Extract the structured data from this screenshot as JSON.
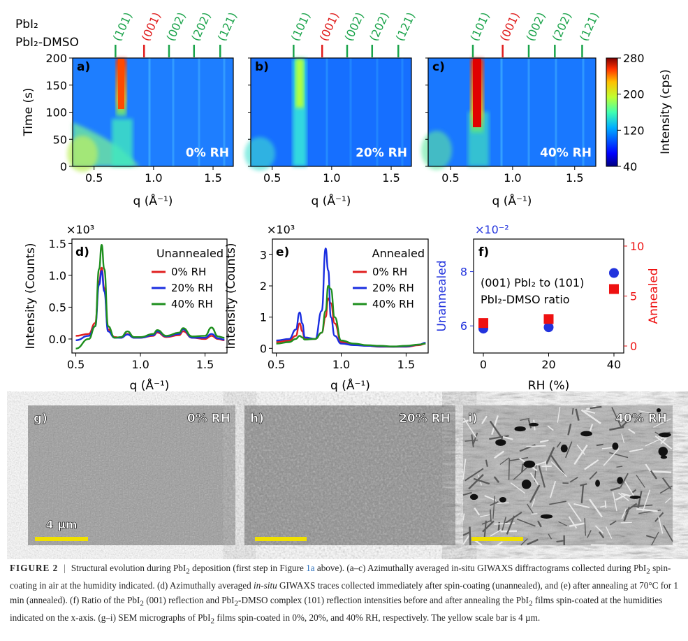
{
  "legend_top": {
    "pbi2": "PbI₂",
    "complex": "PbI₂-DMSO"
  },
  "peak_labels": [
    "(101)",
    "(001)",
    "(002)",
    "(202)",
    "(121)"
  ],
  "heatmap": {
    "panels": [
      {
        "letter": "a)",
        "rh": "0% RH"
      },
      {
        "letter": "b)",
        "rh": "20% RH"
      },
      {
        "letter": "c)",
        "rh": "40% RH"
      }
    ],
    "ylabel": "Time (s)",
    "xlabel": "q (Å⁻¹)",
    "yticks": [
      "0",
      "50",
      "100",
      "150",
      "200"
    ],
    "xticks": [
      "0.5",
      "1.0",
      "1.5"
    ],
    "colorbar": {
      "label": "Intensity (cps)",
      "ticks": [
        "40",
        "120",
        "200",
        "280"
      ]
    }
  },
  "panel_d": {
    "letter": "d)",
    "title": "Unannealed",
    "multiplier": "×10³",
    "ylabel": "Intensity (Counts)",
    "xlabel": "q (Å⁻¹)",
    "yticks": [
      "0.0",
      "0.5",
      "1.0",
      "1.5"
    ],
    "xticks": [
      "0.5",
      "1.0",
      "1.5"
    ],
    "legend": [
      "0% RH",
      "20% RH",
      "40% RH"
    ]
  },
  "panel_e": {
    "letter": "e)",
    "title": "Annealed",
    "multiplier": "×10³",
    "ylabel": "Intensity (Counts)",
    "xlabel": "q (Å⁻¹)",
    "yticks": [
      "0",
      "1",
      "2",
      "3"
    ],
    "xticks": [
      "0.5",
      "1.0",
      "1.5"
    ],
    "legend": [
      "0% RH",
      "20% RH",
      "40% RH"
    ]
  },
  "panel_f": {
    "letter": "f)",
    "multiplier": "×10⁻²",
    "ylabel_left": "Unannealed",
    "ylabel_right": "Annealed",
    "xlabel": "RH (%)",
    "text1": "(001) PbI₂ to (101)",
    "text2": "PbI₂-DMSO ratio",
    "yticks_left": [
      "6",
      "8"
    ],
    "yticks_right": [
      "0",
      "5",
      "10"
    ],
    "xticks": [
      "0",
      "20",
      "40"
    ]
  },
  "sem": [
    {
      "letter": "g)",
      "rh": "0% RH",
      "scale": "4 µm"
    },
    {
      "letter": "h)",
      "rh": "20% RH"
    },
    {
      "letter": "i)",
      "rh": "40% RH"
    }
  ],
  "colors": {
    "pbi2": "#e01b1b",
    "complex": "#1aa34a",
    "blue": "#1a2ee0",
    "green": "#1e8f1e",
    "red": "#e02020",
    "scale": "#f0e000",
    "ratio_blue": "#2233dd",
    "ratio_red": "#ee1111"
  },
  "chart_data": [
    {
      "type": "line",
      "title": "Unannealed",
      "xlabel": "q (Å⁻¹)",
      "ylabel": "Intensity (Counts)",
      "xlim": [
        0.47,
        1.67
      ],
      "ylim": [
        -0.22,
        1.57
      ],
      "y_multiplier": "×10³",
      "x": [
        0.5,
        0.6,
        0.65,
        0.68,
        0.7,
        0.72,
        0.75,
        0.8,
        0.85,
        0.9,
        0.95,
        1.0,
        1.1,
        1.13,
        1.2,
        1.3,
        1.33,
        1.4,
        1.5,
        1.55,
        1.6,
        1.65
      ],
      "series": [
        {
          "name": "0% RH",
          "values": [
            0.05,
            0.08,
            0.25,
            0.9,
            1.12,
            0.8,
            0.15,
            0.03,
            0.02,
            0.08,
            0.02,
            0.02,
            0.05,
            0.1,
            0.03,
            0.06,
            0.12,
            0.02,
            0.0,
            0.05,
            0.0,
            -0.02
          ]
        },
        {
          "name": "20% RH",
          "values": [
            -0.02,
            0.05,
            0.2,
            0.85,
            1.07,
            0.75,
            0.12,
            0.02,
            0.02,
            0.07,
            0.02,
            0.02,
            0.06,
            0.12,
            0.04,
            0.08,
            0.15,
            0.02,
            0.02,
            0.08,
            0.01,
            -0.01
          ]
        },
        {
          "name": "40% RH",
          "values": [
            -0.15,
            0.0,
            0.2,
            1.1,
            1.48,
            1.1,
            0.2,
            0.02,
            0.03,
            0.12,
            0.03,
            0.03,
            0.08,
            0.14,
            0.05,
            0.1,
            0.17,
            0.04,
            0.05,
            0.18,
            0.04,
            0.02
          ]
        }
      ]
    },
    {
      "type": "line",
      "title": "Annealed",
      "xlabel": "q (Å⁻¹)",
      "ylabel": "Intensity (Counts)",
      "xlim": [
        0.47,
        1.67
      ],
      "ylim": [
        -0.15,
        3.5
      ],
      "y_multiplier": "×10³",
      "x": [
        0.5,
        0.6,
        0.65,
        0.68,
        0.7,
        0.72,
        0.8,
        0.85,
        0.88,
        0.9,
        0.92,
        0.95,
        1.0,
        1.1,
        1.2,
        1.3,
        1.4,
        1.5,
        1.6,
        1.65
      ],
      "series": [
        {
          "name": "0% RH",
          "values": [
            0.2,
            0.25,
            0.4,
            0.8,
            0.55,
            0.3,
            0.3,
            0.5,
            1.0,
            1.6,
            1.45,
            0.8,
            0.2,
            0.12,
            0.08,
            0.05,
            0.05,
            0.05,
            0.1,
            0.15
          ]
        },
        {
          "name": "20% RH",
          "values": [
            0.25,
            0.3,
            0.6,
            1.15,
            0.8,
            0.35,
            0.3,
            1.2,
            3.2,
            2.5,
            1.0,
            0.4,
            0.15,
            0.1,
            0.08,
            0.06,
            0.05,
            0.06,
            0.12,
            0.18
          ]
        },
        {
          "name": "40% RH",
          "values": [
            0.15,
            0.2,
            0.3,
            0.4,
            0.35,
            0.28,
            0.3,
            0.5,
            1.2,
            2.0,
            1.9,
            1.0,
            0.25,
            0.15,
            0.1,
            0.08,
            0.06,
            0.08,
            0.12,
            0.15
          ]
        }
      ]
    },
    {
      "type": "scatter",
      "xlabel": "RH (%)",
      "ylabel_left": "Unannealed",
      "ylabel_right": "Annealed",
      "xlim": [
        -3,
        43
      ],
      "ylim_left": [
        5.0,
        9.2
      ],
      "ylim_right": [
        -0.7,
        10.7
      ],
      "y_left_multiplier": "×10⁻²",
      "series": [
        {
          "name": "Unannealed",
          "axis": "left",
          "x": [
            0,
            20,
            40
          ],
          "values": [
            5.9,
            5.95,
            7.95
          ]
        },
        {
          "name": "Annealed",
          "axis": "right",
          "x": [
            0,
            20,
            40
          ],
          "values": [
            2.3,
            2.7,
            5.7
          ]
        }
      ]
    }
  ],
  "caption": {
    "lead": "FIGURE 2",
    "t1": "Structural evolution during PbI",
    "t2": " deposition (first step in Figure ",
    "link": "1a",
    "t3": " above). (a–c) Azimuthally averaged in-situ GIWAXS diffractograms collected during PbI",
    "t4": " spin-coating in air at the humidity indicated. (d) Azimuthally averaged ",
    "italic": "in-situ",
    "t5": " GIWAXS traces collected immediately after spin-coating (unannealed), and (e) after annealing at 70°C for 1 min (annealed). (f) Ratio of the PbI",
    "t6": " (001) reflection and PbI",
    "t7": "-DMSO complex (101) reflection intensities before and after annealing the PbI",
    "t8": " films spin-coated at the humidities indicated on the x-axis. (g–i) SEM micrographs of PbI",
    "t9": " films spin-coated in 0%, 20%, and 40% RH, respectively. The yellow scale bar is 4 µm.",
    "sub": "2"
  }
}
